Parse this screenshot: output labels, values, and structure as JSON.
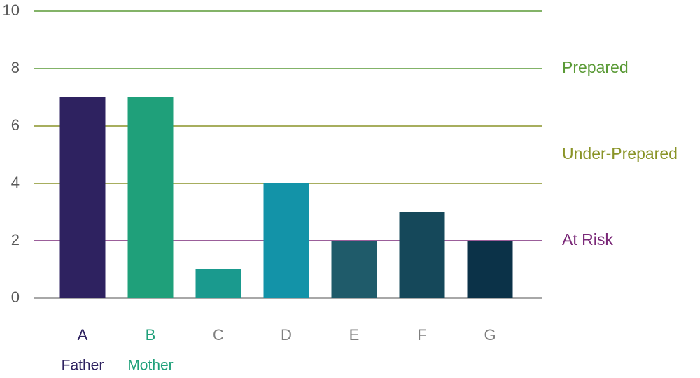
{
  "chart_data": {
    "type": "bar",
    "categories": [
      "A",
      "B",
      "C",
      "D",
      "E",
      "F",
      "G"
    ],
    "category_colors": [
      "#2e2260",
      "#1fa07a",
      "#7f7f7f",
      "#7f7f7f",
      "#7f7f7f",
      "#7f7f7f",
      "#7f7f7f"
    ],
    "sublabels": [
      "Father",
      "Mother",
      null,
      null,
      null,
      null,
      null
    ],
    "values": [
      7,
      7,
      1,
      4,
      2,
      3,
      2
    ],
    "colors": [
      "#2e2260",
      "#1fa07a",
      "#1a9a8e",
      "#1393a8",
      "#1f5b6a",
      "#15485a",
      "#0b3248"
    ],
    "ylim": [
      0,
      10
    ],
    "yticks": [
      0,
      2,
      4,
      6,
      8,
      10
    ],
    "grid": true,
    "grid_colors": [
      "#8c8c8c",
      "#7a2878",
      "#8a9428",
      "#8a9428",
      "#5a9a36",
      "#5a9a36"
    ],
    "zones": [
      {
        "label": "Prepared",
        "value": 8,
        "color": "#5a9a36"
      },
      {
        "label": "Under-Prepared",
        "value": 5,
        "color": "#8a9428"
      },
      {
        "label": "At Risk",
        "value": 2,
        "color": "#7a2878"
      }
    ]
  }
}
